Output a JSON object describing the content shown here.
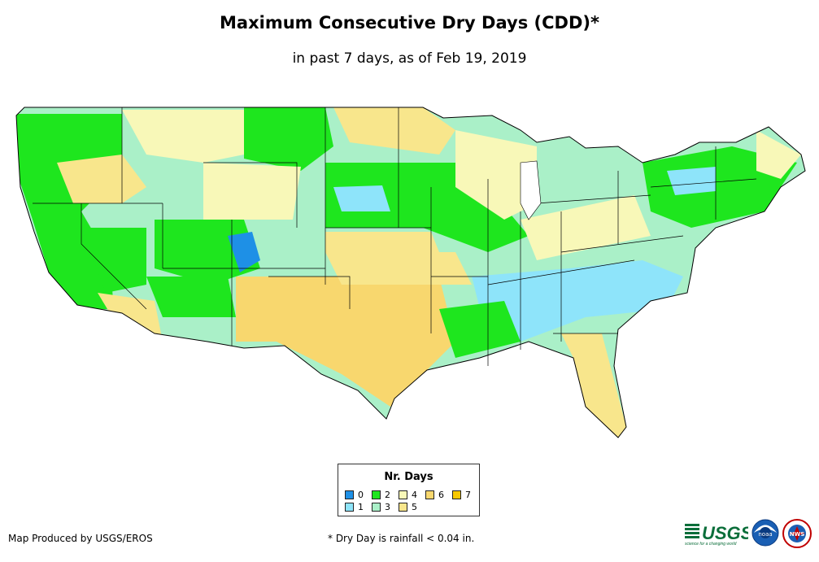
{
  "title": "Maximum Consecutive Dry Days (CDD)*",
  "subtitle": "in past 7 days, as of Feb 19, 2019",
  "legend": {
    "title": "Nr. Days",
    "items": [
      {
        "label": "0",
        "color": "#1e90e6"
      },
      {
        "label": "1",
        "color": "#8ee4fa"
      },
      {
        "label": "2",
        "color": "#1ee61e"
      },
      {
        "label": "3",
        "color": "#aaf0c8"
      },
      {
        "label": "4",
        "color": "#f8f8b8"
      },
      {
        "label": "5",
        "color": "#f8e68c"
      },
      {
        "label": "6",
        "color": "#f8d76e"
      },
      {
        "label": "7",
        "color": "#f8c800"
      }
    ]
  },
  "footer": {
    "producer": "Map Produced by USGS/EROS",
    "footnote": "* Dry Day is rainfall < 0.04 in."
  },
  "logos": {
    "usgs": "USGS",
    "usgs_tagline": "science for a changing world",
    "noaa": "noaa",
    "nws": "NWS"
  }
}
